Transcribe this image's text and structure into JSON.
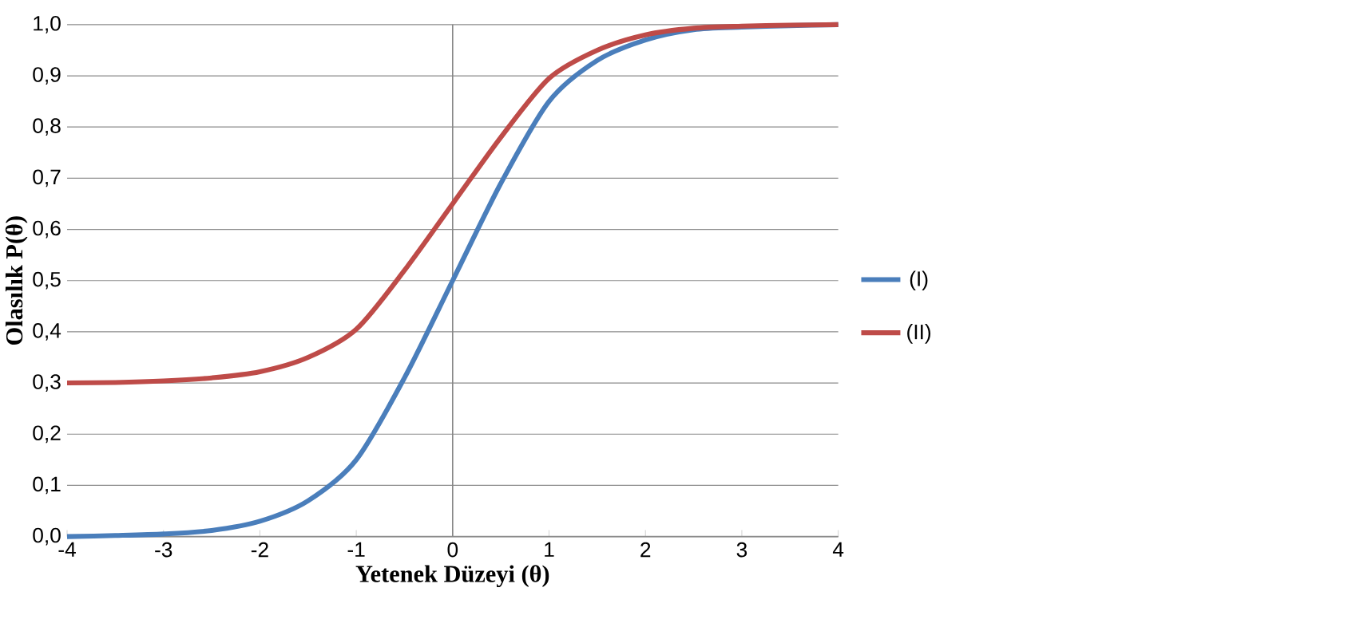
{
  "chart_data": {
    "type": "line",
    "xlabel": "Yetenek Düzeyi (θ)",
    "ylabel": "Olasılık   P(θ)",
    "xlim": [
      -4,
      4
    ],
    "xticks": [
      -4,
      -3,
      -2,
      -1,
      0,
      1,
      2,
      3,
      4
    ],
    "ylim": [
      0,
      1
    ],
    "yticks": [
      {
        "value": 0,
        "label": "0,0"
      },
      {
        "value": 0.1,
        "label": "0,1"
      },
      {
        "value": 0.2,
        "label": "0,2"
      },
      {
        "value": 0.3,
        "label": "0,3"
      },
      {
        "value": 0.4,
        "label": "0,4"
      },
      {
        "value": 0.5,
        "label": "0,5"
      },
      {
        "value": 0.6,
        "label": "0,6"
      },
      {
        "value": 0.7,
        "label": "0,7"
      },
      {
        "value": 0.8,
        "label": "0,8"
      },
      {
        "value": 0.9,
        "label": "0,9"
      },
      {
        "value": 1,
        "label": "1,0"
      }
    ],
    "x": [
      -4,
      -3.5,
      -3,
      -2.5,
      -2,
      -1.5,
      -1,
      -0.5,
      0,
      0.5,
      1,
      1.5,
      2,
      2.5,
      3,
      3.5,
      4
    ],
    "series": [
      {
        "name": "(I)",
        "color": "#4a7ebb",
        "values": [
          0.0,
          0.002,
          0.005,
          0.012,
          0.03,
          0.07,
          0.15,
          0.31,
          0.5,
          0.69,
          0.85,
          0.93,
          0.97,
          0.99,
          0.995,
          0.998,
          1.0
        ]
      },
      {
        "name": "(II)",
        "color": "#be4b48",
        "values": [
          0.3,
          0.301,
          0.304,
          0.31,
          0.322,
          0.35,
          0.405,
          0.52,
          0.65,
          0.78,
          0.895,
          0.95,
          0.98,
          0.993,
          0.997,
          0.999,
          1.0
        ]
      }
    ],
    "ref_lines": [
      {
        "axis": "x",
        "value": 0,
        "color": "#868686"
      }
    ],
    "grid": "y",
    "legend": "right",
    "marker": "none",
    "line_style": "solid"
  }
}
